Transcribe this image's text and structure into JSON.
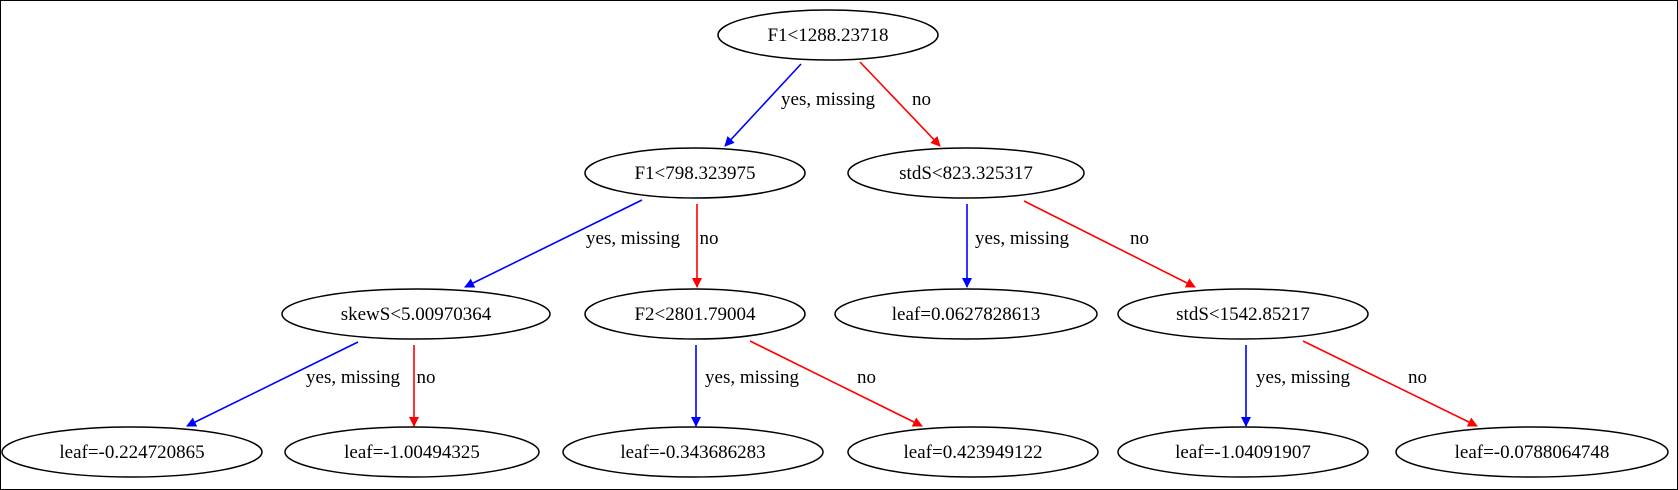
{
  "tree": {
    "nodes": [
      {
        "id": "n0",
        "label": "F1<1288.23718"
      },
      {
        "id": "n1",
        "label": "F1<798.323975"
      },
      {
        "id": "n2",
        "label": "stdS<823.325317"
      },
      {
        "id": "n3",
        "label": "skewS<5.00970364"
      },
      {
        "id": "n4",
        "label": "F2<2801.79004"
      },
      {
        "id": "n5",
        "label": "leaf=0.0627828613"
      },
      {
        "id": "n6",
        "label": "stdS<1542.85217"
      },
      {
        "id": "n7",
        "label": "leaf=-0.224720865"
      },
      {
        "id": "n8",
        "label": "leaf=-1.00494325"
      },
      {
        "id": "n9",
        "label": "leaf=-0.343686283"
      },
      {
        "id": "n10",
        "label": "leaf=0.423949122"
      },
      {
        "id": "n11",
        "label": "leaf=-1.04091907"
      },
      {
        "id": "n12",
        "label": "leaf=-0.0788064748"
      }
    ],
    "edges": [
      {
        "id": "e0",
        "from": "n0",
        "to": "n1",
        "label": "yes, missing",
        "color": "#0000ff"
      },
      {
        "id": "e1",
        "from": "n0",
        "to": "n2",
        "label": "no",
        "color": "#ff0000"
      },
      {
        "id": "e2",
        "from": "n1",
        "to": "n3",
        "label": "yes, missing",
        "color": "#0000ff"
      },
      {
        "id": "e3",
        "from": "n1",
        "to": "n4",
        "label": "no",
        "color": "#ff0000"
      },
      {
        "id": "e4",
        "from": "n2",
        "to": "n5",
        "label": "yes, missing",
        "color": "#0000ff"
      },
      {
        "id": "e5",
        "from": "n2",
        "to": "n6",
        "label": "no",
        "color": "#ff0000"
      },
      {
        "id": "e6",
        "from": "n3",
        "to": "n7",
        "label": "yes, missing",
        "color": "#0000ff"
      },
      {
        "id": "e7",
        "from": "n3",
        "to": "n8",
        "label": "no",
        "color": "#ff0000"
      },
      {
        "id": "e8",
        "from": "n4",
        "to": "n9",
        "label": "yes, missing",
        "color": "#0000ff"
      },
      {
        "id": "e9",
        "from": "n4",
        "to": "n10",
        "label": "no",
        "color": "#ff0000"
      },
      {
        "id": "e10",
        "from": "n6",
        "to": "n11",
        "label": "yes, missing",
        "color": "#0000ff"
      },
      {
        "id": "e11",
        "from": "n6",
        "to": "n12",
        "label": "no",
        "color": "#ff0000"
      }
    ]
  }
}
